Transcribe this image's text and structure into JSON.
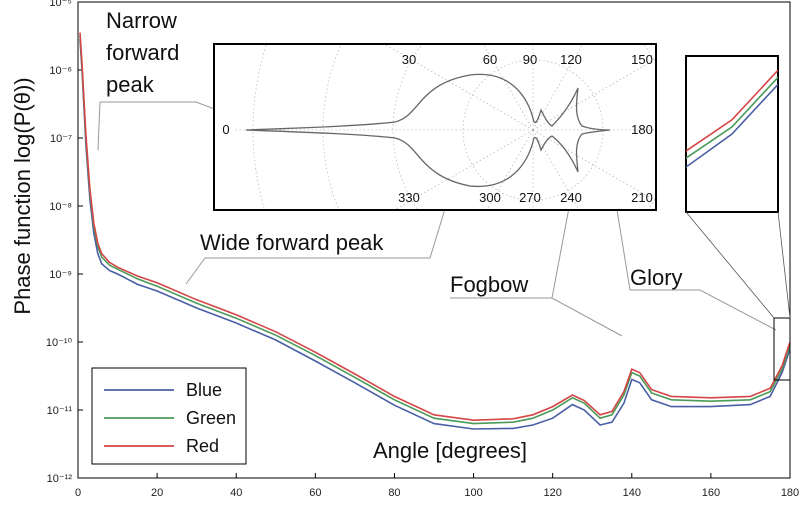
{
  "chart_data": {
    "type": "line",
    "title": "",
    "xlabel": "Angle [degrees]",
    "ylabel": "Phase function log(P(θ))",
    "xlim": [
      0,
      180
    ],
    "ylim_log10": [
      -12,
      -5
    ],
    "y_scale": "log",
    "x_ticks": [
      0,
      20,
      40,
      60,
      80,
      100,
      120,
      140,
      160,
      180
    ],
    "y_tick_labels": [
      "10⁻¹²",
      "10⁻¹¹",
      "10⁻¹⁰",
      "10⁻⁹",
      "10⁻⁸",
      "10⁻⁷",
      "10⁻⁶",
      "10⁻⁵"
    ],
    "legend_position": "bottom-left",
    "series": [
      {
        "name": "Blue",
        "color": "#4b5fa6",
        "points": [
          [
            0.5,
            -5.55
          ],
          [
            1,
            -6.0
          ],
          [
            2,
            -7.1
          ],
          [
            3,
            -7.9
          ],
          [
            4,
            -8.4
          ],
          [
            5,
            -8.7
          ],
          [
            6,
            -8.85
          ],
          [
            8,
            -8.95
          ],
          [
            10,
            -9.0
          ],
          [
            15,
            -9.15
          ],
          [
            20,
            -9.25
          ],
          [
            30,
            -9.5
          ],
          [
            40,
            -9.72
          ],
          [
            50,
            -9.97
          ],
          [
            60,
            -10.28
          ],
          [
            70,
            -10.6
          ],
          [
            80,
            -10.93
          ],
          [
            90,
            -11.2
          ],
          [
            100,
            -11.28
          ],
          [
            110,
            -11.27
          ],
          [
            115,
            -11.22
          ],
          [
            120,
            -11.12
          ],
          [
            125,
            -10.92
          ],
          [
            128,
            -11.0
          ],
          [
            132,
            -11.22
          ],
          [
            135,
            -11.18
          ],
          [
            138,
            -10.9
          ],
          [
            140,
            -10.55
          ],
          [
            142,
            -10.6
          ],
          [
            145,
            -10.85
          ],
          [
            150,
            -10.95
          ],
          [
            160,
            -10.95
          ],
          [
            170,
            -10.92
          ],
          [
            175,
            -10.8
          ],
          [
            178,
            -10.45
          ],
          [
            180,
            -10.1
          ]
        ]
      },
      {
        "name": "Green",
        "color": "#4a9a5a",
        "points": [
          [
            0.5,
            -5.5
          ],
          [
            1,
            -5.95
          ],
          [
            2,
            -7.0
          ],
          [
            3,
            -7.8
          ],
          [
            4,
            -8.3
          ],
          [
            5,
            -8.6
          ],
          [
            6,
            -8.75
          ],
          [
            8,
            -8.87
          ],
          [
            10,
            -8.93
          ],
          [
            15,
            -9.07
          ],
          [
            20,
            -9.18
          ],
          [
            30,
            -9.43
          ],
          [
            40,
            -9.65
          ],
          [
            50,
            -9.9
          ],
          [
            60,
            -10.2
          ],
          [
            70,
            -10.52
          ],
          [
            80,
            -10.85
          ],
          [
            90,
            -11.12
          ],
          [
            100,
            -11.2
          ],
          [
            110,
            -11.18
          ],
          [
            115,
            -11.12
          ],
          [
            120,
            -11.0
          ],
          [
            125,
            -10.82
          ],
          [
            128,
            -10.9
          ],
          [
            132,
            -11.12
          ],
          [
            135,
            -11.07
          ],
          [
            138,
            -10.78
          ],
          [
            140,
            -10.45
          ],
          [
            142,
            -10.5
          ],
          [
            145,
            -10.75
          ],
          [
            150,
            -10.85
          ],
          [
            160,
            -10.87
          ],
          [
            170,
            -10.85
          ],
          [
            175,
            -10.73
          ],
          [
            178,
            -10.4
          ],
          [
            180,
            -10.05
          ]
        ]
      },
      {
        "name": "Red",
        "color": "#d64545",
        "points": [
          [
            0.5,
            -5.45
          ],
          [
            1,
            -5.9
          ],
          [
            2,
            -6.95
          ],
          [
            3,
            -7.75
          ],
          [
            4,
            -8.25
          ],
          [
            5,
            -8.55
          ],
          [
            6,
            -8.7
          ],
          [
            8,
            -8.83
          ],
          [
            10,
            -8.9
          ],
          [
            15,
            -9.03
          ],
          [
            20,
            -9.13
          ],
          [
            30,
            -9.38
          ],
          [
            40,
            -9.6
          ],
          [
            50,
            -9.85
          ],
          [
            60,
            -10.15
          ],
          [
            70,
            -10.47
          ],
          [
            80,
            -10.8
          ],
          [
            90,
            -11.07
          ],
          [
            100,
            -11.15
          ],
          [
            110,
            -11.13
          ],
          [
            115,
            -11.07
          ],
          [
            120,
            -10.95
          ],
          [
            125,
            -10.78
          ],
          [
            128,
            -10.86
          ],
          [
            132,
            -11.07
          ],
          [
            135,
            -11.02
          ],
          [
            138,
            -10.73
          ],
          [
            140,
            -10.4
          ],
          [
            142,
            -10.45
          ],
          [
            145,
            -10.7
          ],
          [
            150,
            -10.8
          ],
          [
            160,
            -10.82
          ],
          [
            170,
            -10.8
          ],
          [
            175,
            -10.68
          ],
          [
            178,
            -10.35
          ],
          [
            180,
            -10.0
          ]
        ]
      }
    ],
    "annotations": [
      {
        "line1": "Narrow",
        "line2": "forward",
        "line3": "peak"
      },
      {
        "text": "Wide forward peak"
      },
      {
        "text": "Fogbow"
      },
      {
        "text": "Glory"
      }
    ],
    "inset_polar": {
      "angle_labels": [
        "0",
        "30",
        "60",
        "90",
        "120",
        "150",
        "180",
        "210",
        "240",
        "270",
        "300",
        "330"
      ]
    },
    "inset_zoom": {
      "x_range": [
        176,
        180
      ]
    }
  }
}
